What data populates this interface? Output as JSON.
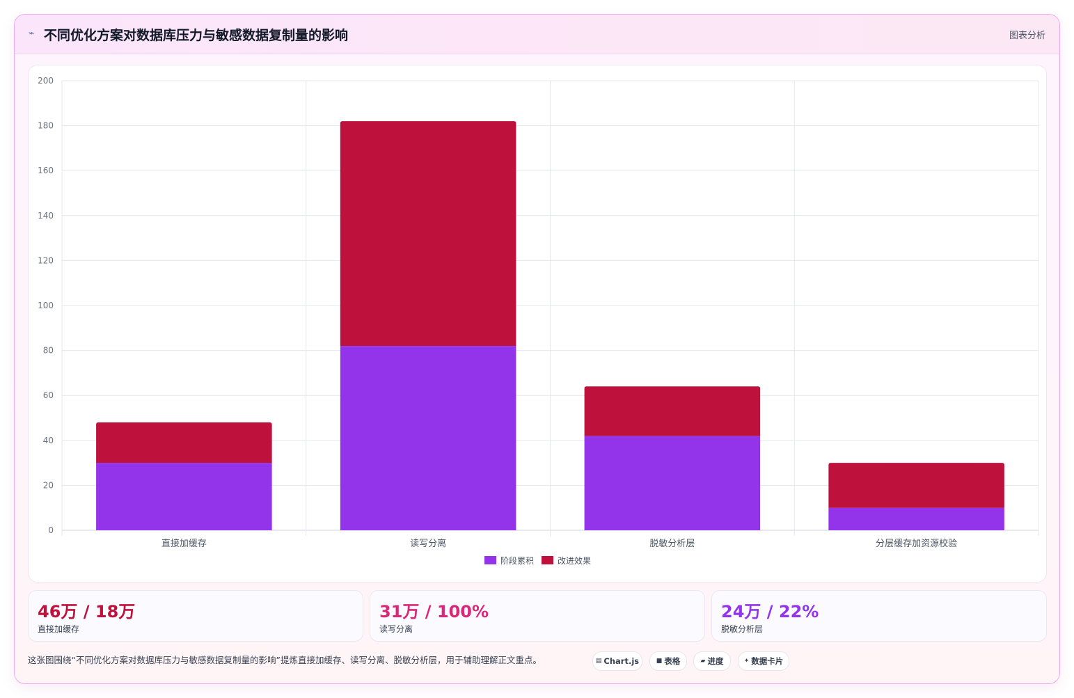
{
  "header": {
    "icon": "chart-line-icon",
    "title": "不同优化方案对数据库压力与敏感数据复制量的影响",
    "tag": "图表分析"
  },
  "chart_data": {
    "type": "bar",
    "stacked": true,
    "categories": [
      "直接加缓存",
      "读写分离",
      "脱敏分析层",
      "分层缓存加资源校验"
    ],
    "series": [
      {
        "name": "阶段累积",
        "values": [
          30,
          82,
          42,
          10
        ],
        "color": "#9333ea"
      },
      {
        "name": "改进效果",
        "values": [
          18,
          100,
          22,
          20
        ],
        "color": "#be123c"
      }
    ],
    "ylim": [
      0,
      200
    ],
    "yticks": [
      0,
      20,
      40,
      60,
      80,
      100,
      120,
      140,
      160,
      180,
      200
    ],
    "grid": true,
    "legend": "bottom"
  },
  "stats": [
    {
      "value": "46万 / 18万",
      "label": "直接加缓存",
      "color": "#be123c"
    },
    {
      "value": "31万 / 100%",
      "label": "读写分离",
      "color": "#db2777"
    },
    {
      "value": "24万 / 22%",
      "label": "脱敏分析层",
      "color": "#9333ea"
    }
  ],
  "footer": {
    "note": "这张图围绕“不同优化方案对数据库压力与敏感数据复制量的影响”提炼直接加缓存、读写分离、脱敏分析层，用于辅助理解正文重点。",
    "chips": [
      {
        "icon": "chart-icon",
        "glyph": "▤",
        "label": "Chart.js"
      },
      {
        "icon": "table-icon",
        "glyph": "■",
        "label": "表格"
      },
      {
        "icon": "progress-icon",
        "glyph": "▰",
        "label": "进度"
      },
      {
        "icon": "sparkle-icon",
        "glyph": "✦",
        "label": "数据卡片"
      }
    ]
  }
}
